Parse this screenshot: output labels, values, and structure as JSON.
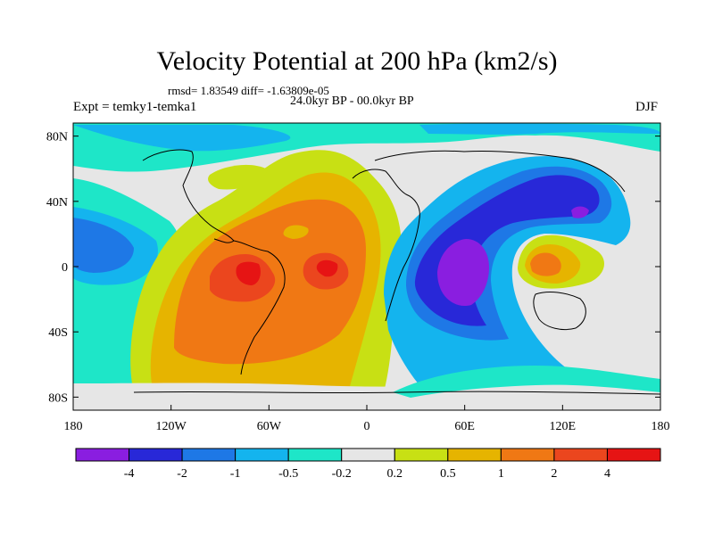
{
  "title": "Velocity Potential at 200 hPa (km2/s)",
  "stats": "rmsd= 1.83549  diff= -1.63809e-05",
  "period": "24.0kyr BP - 00.0kyr BP",
  "experiment": "Expt = temky1-temka1",
  "season": "DJF",
  "lat_ticks": [
    {
      "label": "80N",
      "lat": 80
    },
    {
      "label": "40N",
      "lat": 40
    },
    {
      "label": "0",
      "lat": 0
    },
    {
      "label": "40S",
      "lat": -40
    },
    {
      "label": "80S",
      "lat": -80
    }
  ],
  "lon_ticks": [
    {
      "label": "180",
      "lon": -180
    },
    {
      "label": "120W",
      "lon": -120
    },
    {
      "label": "60W",
      "lon": -60
    },
    {
      "label": "0",
      "lon": 0
    },
    {
      "label": "60E",
      "lon": 60
    },
    {
      "label": "120E",
      "lon": 120
    },
    {
      "label": "180",
      "lon": 180
    }
  ],
  "colorbar": {
    "colors": [
      "#8a1ee0",
      "#2828d8",
      "#1e78e6",
      "#14b4ee",
      "#1ee6c8",
      "#e6e6e6",
      "#c8e014",
      "#e6b400",
      "#f07814",
      "#eb461e",
      "#e61414"
    ],
    "labels": [
      "-4",
      "-2",
      "-1",
      "-0.5",
      "-0.2",
      "0.2",
      "0.5",
      "1",
      "2",
      "4"
    ]
  }
}
